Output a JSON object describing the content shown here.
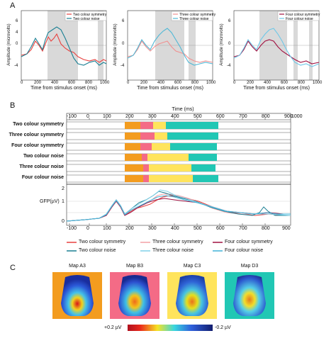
{
  "panels": {
    "a": "A",
    "b": "B",
    "c": "C"
  },
  "panel_a": {
    "ylabel": "Amplitude (microvolts)",
    "xlabel": "Time from stimulus onset (ms)",
    "xticks": [
      "0",
      "200",
      "400",
      "600",
      "800",
      "1000"
    ],
    "yticks": [
      "6",
      "4",
      "2",
      "0",
      "-2",
      "-4",
      "-6"
    ],
    "plots": [
      {
        "legend": [
          "Two colour symmetry",
          "Two colour noise"
        ],
        "colors": [
          "#e8413f",
          "#1a7f93"
        ]
      },
      {
        "legend": [
          "Three colour symmetry",
          "Three colour noise"
        ],
        "colors": [
          "#f09090",
          "#4fb8d6"
        ]
      },
      {
        "legend": [
          "Four colour symmetry",
          "Four colour noise"
        ],
        "colors": [
          "#a01040",
          "#6ec8e8"
        ]
      }
    ]
  },
  "panel_b": {
    "time_label": "Time (ms)",
    "top_ticks": [
      "-100",
      "0",
      "100",
      "200",
      "300",
      "400",
      "500",
      "600",
      "700",
      "800",
      "900",
      "1000"
    ],
    "rows": [
      "Two colour symmetry",
      "Three colour symmetry",
      "Four colour symmetry",
      "Two colour noise",
      "Three colour noise",
      "Four colour noise"
    ],
    "state_colors": {
      "A": "#f39c1f",
      "B": "#f46b86",
      "C": "#ffe45c",
      "D": "#21c7b4"
    },
    "gfp_label": "GFP(µV)",
    "gfp_yticks": [
      "2",
      "1",
      "0"
    ],
    "bottom_ticks": [
      "-100",
      "0",
      "100",
      "200",
      "300",
      "400",
      "500",
      "600",
      "700",
      "800",
      "900"
    ]
  },
  "legend_b": {
    "items": [
      {
        "label": "Two colour symmetry",
        "color": "#e8413f"
      },
      {
        "label": "Three colour symmetry",
        "color": "#f3a0a6"
      },
      {
        "label": "Four colour symmetry",
        "color": "#a01040"
      },
      {
        "label": "Two colour noise",
        "color": "#1a7f93"
      },
      {
        "label": "Three colour noise",
        "color": "#7fd0e8"
      },
      {
        "label": "Four colour noise",
        "color": "#41b3d9"
      }
    ]
  },
  "panel_c": {
    "maps": [
      {
        "title": "Map A3",
        "bg": "#f39c1f"
      },
      {
        "title": "Map B3",
        "bg": "#f46b86"
      },
      {
        "title": "Map C3",
        "bg": "#ffe45c"
      },
      {
        "title": "Map D3",
        "bg": "#21c7b4"
      }
    ],
    "cbar_left": "+0.2 µV",
    "cbar_right": "-0.2 µV"
  }
}
